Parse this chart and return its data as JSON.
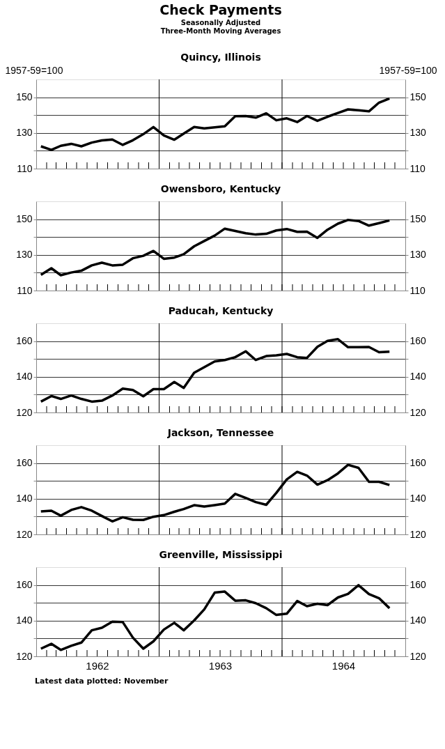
{
  "chart_data": [
    {
      "type": "other",
      "title": "Check Payments",
      "subtitle": [
        "Seasonally Adjusted",
        "Three-Month Moving Averages"
      ]
    },
    {
      "type": "line",
      "title": "Quincy, Illinois",
      "ylabel": "1957-59=100",
      "y2label": "1957-59=100",
      "x": [
        "1962-01-15",
        "1962-02-15",
        "1962-03-15",
        "1962-04-15",
        "1962-05-15",
        "1962-06-15",
        "1962-07-15",
        "1962-08-15",
        "1962-09-15",
        "1962-10-15",
        "1962-11-15",
        "1962-12-15",
        "1963-01-15",
        "1963-02-15",
        "1963-03-15",
        "1963-04-15",
        "1963-05-15",
        "1963-06-15",
        "1963-07-15",
        "1963-08-15",
        "1963-09-15",
        "1963-10-15",
        "1963-11-15",
        "1963-12-15",
        "1964-01-15",
        "1964-02-15",
        "1964-03-15",
        "1964-04-15",
        "1964-05-15",
        "1964-06-15",
        "1964-07-15",
        "1964-08-15",
        "1964-09-15",
        "1964-10-15",
        "1964-11-15"
      ],
      "series": [
        {
          "color": "#000000",
          "values": [
            122.5,
            120.5,
            122.8,
            123.9,
            122.5,
            124.6,
            125.8,
            126.3,
            123.3,
            125.9,
            129.3,
            133.3,
            128.6,
            126.2,
            129.6,
            133.3,
            132.6,
            133.1,
            133.7,
            139.4,
            139.5,
            138.6,
            141.0,
            137.1,
            138.2,
            136.1,
            139.5,
            136.8,
            139.1,
            141.2,
            143.2,
            142.7,
            142.1,
            147.0,
            149.3
          ]
        }
      ],
      "xlim": [
        "1962-01-01",
        "1965-01-01"
      ],
      "xticks": [
        {
          "value": "1962-02-01",
          "label": null
        },
        {
          "value": "1962-03-01",
          "label": null
        },
        {
          "value": "1962-04-01",
          "label": null
        },
        {
          "value": "1962-05-01",
          "label": null
        },
        {
          "value": "1962-06-01",
          "label": null
        },
        {
          "value": "1962-07-01",
          "label": null
        },
        {
          "value": "1962-08-01",
          "label": null
        },
        {
          "value": "1962-09-01",
          "label": null
        },
        {
          "value": "1962-10-01",
          "label": null
        },
        {
          "value": "1962-11-01",
          "label": null
        },
        {
          "value": "1962-12-01",
          "label": null
        },
        {
          "value": "1963-01-01",
          "label": null
        },
        {
          "value": "1963-02-01",
          "label": null
        },
        {
          "value": "1963-03-01",
          "label": null
        },
        {
          "value": "1963-04-01",
          "label": null
        },
        {
          "value": "1963-05-01",
          "label": null
        },
        {
          "value": "1963-06-01",
          "label": null
        },
        {
          "value": "1963-07-01",
          "label": null
        },
        {
          "value": "1963-08-01",
          "label": null
        },
        {
          "value": "1963-09-01",
          "label": null
        },
        {
          "value": "1963-10-01",
          "label": null
        },
        {
          "value": "1963-11-01",
          "label": null
        },
        {
          "value": "1963-12-01",
          "label": null
        },
        {
          "value": "1964-01-01",
          "label": null
        },
        {
          "value": "1964-02-01",
          "label": null
        },
        {
          "value": "1964-03-01",
          "label": null
        },
        {
          "value": "1964-04-01",
          "label": null
        },
        {
          "value": "1964-05-01",
          "label": null
        },
        {
          "value": "1964-06-01",
          "label": null
        },
        {
          "value": "1964-07-01",
          "label": null
        },
        {
          "value": "1964-08-01",
          "label": null
        },
        {
          "value": "1964-09-01",
          "label": null
        },
        {
          "value": "1964-10-01",
          "label": null
        },
        {
          "value": "1964-11-01",
          "label": null
        },
        {
          "value": "1964-12-01",
          "label": null
        }
      ],
      "ylim": [
        110,
        160
      ],
      "yticks": [
        110,
        {
          "value": 120,
          "label": null
        },
        130,
        {
          "value": 140,
          "label": null
        },
        150
      ],
      "y2lim": [
        110,
        160
      ],
      "y2ticks": [
        110,
        {
          "value": 120,
          "label": null
        },
        130,
        {
          "value": 140,
          "label": null
        },
        150
      ],
      "tick_labels": "y",
      "grid": "y",
      "ref_lines": [
        {
          "axis": "x",
          "value": "1963-01-01"
        },
        {
          "axis": "x",
          "value": "1964-01-01"
        }
      ]
    },
    {
      "type": "line",
      "title": "Owensboro, Kentucky",
      "x": [
        "1962-01-15",
        "1962-02-15",
        "1962-03-15",
        "1962-04-15",
        "1962-05-15",
        "1962-06-15",
        "1962-07-15",
        "1962-08-15",
        "1962-09-15",
        "1962-10-15",
        "1962-11-15",
        "1962-12-15",
        "1963-01-15",
        "1963-02-15",
        "1963-03-15",
        "1963-04-15",
        "1963-05-15",
        "1963-06-15",
        "1963-07-15",
        "1963-08-15",
        "1963-09-15",
        "1963-10-15",
        "1963-11-15",
        "1963-12-15",
        "1964-01-15",
        "1964-02-15",
        "1964-03-15",
        "1964-04-15",
        "1964-05-15",
        "1964-06-15",
        "1964-07-15",
        "1964-08-15",
        "1964-09-15",
        "1964-10-15",
        "1964-11-15"
      ],
      "series": [
        {
          "color": "#000000",
          "values": [
            118.8,
            122.5,
            118.6,
            120.1,
            121.1,
            124.1,
            125.6,
            124.1,
            124.5,
            128.1,
            129.5,
            132.2,
            127.8,
            128.5,
            130.4,
            134.8,
            137.8,
            140.8,
            144.7,
            143.4,
            142.1,
            141.4,
            141.8,
            143.7,
            144.5,
            142.9,
            143.0,
            139.5,
            144.1,
            147.5,
            149.6,
            149.0,
            146.4,
            147.8,
            149.3
          ]
        }
      ],
      "xlim": [
        "1962-01-01",
        "1965-01-01"
      ],
      "xticks": [
        {
          "value": "1962-02-01",
          "label": null
        },
        {
          "value": "1962-03-01",
          "label": null
        },
        {
          "value": "1962-04-01",
          "label": null
        },
        {
          "value": "1962-05-01",
          "label": null
        },
        {
          "value": "1962-06-01",
          "label": null
        },
        {
          "value": "1962-07-01",
          "label": null
        },
        {
          "value": "1962-08-01",
          "label": null
        },
        {
          "value": "1962-09-01",
          "label": null
        },
        {
          "value": "1962-10-01",
          "label": null
        },
        {
          "value": "1962-11-01",
          "label": null
        },
        {
          "value": "1962-12-01",
          "label": null
        },
        {
          "value": "1963-01-01",
          "label": null
        },
        {
          "value": "1963-02-01",
          "label": null
        },
        {
          "value": "1963-03-01",
          "label": null
        },
        {
          "value": "1963-04-01",
          "label": null
        },
        {
          "value": "1963-05-01",
          "label": null
        },
        {
          "value": "1963-06-01",
          "label": null
        },
        {
          "value": "1963-07-01",
          "label": null
        },
        {
          "value": "1963-08-01",
          "label": null
        },
        {
          "value": "1963-09-01",
          "label": null
        },
        {
          "value": "1963-10-01",
          "label": null
        },
        {
          "value": "1963-11-01",
          "label": null
        },
        {
          "value": "1963-12-01",
          "label": null
        },
        {
          "value": "1964-01-01",
          "label": null
        },
        {
          "value": "1964-02-01",
          "label": null
        },
        {
          "value": "1964-03-01",
          "label": null
        },
        {
          "value": "1964-04-01",
          "label": null
        },
        {
          "value": "1964-05-01",
          "label": null
        },
        {
          "value": "1964-06-01",
          "label": null
        },
        {
          "value": "1964-07-01",
          "label": null
        },
        {
          "value": "1964-08-01",
          "label": null
        },
        {
          "value": "1964-09-01",
          "label": null
        },
        {
          "value": "1964-10-01",
          "label": null
        },
        {
          "value": "1964-11-01",
          "label": null
        },
        {
          "value": "1964-12-01",
          "label": null
        }
      ],
      "ylim": [
        110,
        160
      ],
      "yticks": [
        110,
        {
          "value": 120,
          "label": null
        },
        130,
        {
          "value": 140,
          "label": null
        },
        150
      ],
      "y2lim": [
        110,
        160
      ],
      "y2ticks": [
        110,
        {
          "value": 120,
          "label": null
        },
        130,
        {
          "value": 140,
          "label": null
        },
        150
      ],
      "tick_labels": "y",
      "grid": "y",
      "ref_lines": [
        {
          "axis": "x",
          "value": "1963-01-01"
        },
        {
          "axis": "x",
          "value": "1964-01-01"
        }
      ]
    },
    {
      "type": "line",
      "title": "Paducah, Kentucky",
      "x": [
        "1962-01-15",
        "1962-02-15",
        "1962-03-15",
        "1962-04-15",
        "1962-05-15",
        "1962-06-15",
        "1962-07-15",
        "1962-08-15",
        "1962-09-15",
        "1962-10-15",
        "1962-11-15",
        "1962-12-15",
        "1963-01-15",
        "1963-02-15",
        "1963-03-15",
        "1963-04-15",
        "1963-05-15",
        "1963-06-15",
        "1963-07-15",
        "1963-08-15",
        "1963-09-15",
        "1963-10-15",
        "1963-11-15",
        "1963-12-15",
        "1964-01-15",
        "1964-02-15",
        "1964-03-15",
        "1964-04-15",
        "1964-05-15",
        "1964-06-15",
        "1964-07-15",
        "1964-08-15",
        "1964-09-15",
        "1964-10-15",
        "1964-11-15"
      ],
      "series": [
        {
          "color": "#000000",
          "values": [
            126.1,
            129.2,
            127.6,
            129.5,
            127.6,
            126.1,
            126.6,
            129.5,
            133.4,
            132.6,
            129.1,
            133.1,
            133.1,
            137.1,
            133.8,
            142.3,
            145.4,
            148.6,
            149.4,
            151.0,
            154.3,
            149.4,
            151.6,
            152.0,
            152.8,
            151.0,
            150.6,
            156.8,
            160.1,
            161.1,
            156.6,
            156.6,
            156.7,
            153.8,
            154.1
          ]
        }
      ],
      "xlim": [
        "1962-01-01",
        "1965-01-01"
      ],
      "xticks": [
        {
          "value": "1962-02-01",
          "label": null
        },
        {
          "value": "1962-03-01",
          "label": null
        },
        {
          "value": "1962-04-01",
          "label": null
        },
        {
          "value": "1962-05-01",
          "label": null
        },
        {
          "value": "1962-06-01",
          "label": null
        },
        {
          "value": "1962-07-01",
          "label": null
        },
        {
          "value": "1962-08-01",
          "label": null
        },
        {
          "value": "1962-09-01",
          "label": null
        },
        {
          "value": "1962-10-01",
          "label": null
        },
        {
          "value": "1962-11-01",
          "label": null
        },
        {
          "value": "1962-12-01",
          "label": null
        },
        {
          "value": "1963-01-01",
          "label": null
        },
        {
          "value": "1963-02-01",
          "label": null
        },
        {
          "value": "1963-03-01",
          "label": null
        },
        {
          "value": "1963-04-01",
          "label": null
        },
        {
          "value": "1963-05-01",
          "label": null
        },
        {
          "value": "1963-06-01",
          "label": null
        },
        {
          "value": "1963-07-01",
          "label": null
        },
        {
          "value": "1963-08-01",
          "label": null
        },
        {
          "value": "1963-09-01",
          "label": null
        },
        {
          "value": "1963-10-01",
          "label": null
        },
        {
          "value": "1963-11-01",
          "label": null
        },
        {
          "value": "1963-12-01",
          "label": null
        },
        {
          "value": "1964-01-01",
          "label": null
        },
        {
          "value": "1964-02-01",
          "label": null
        },
        {
          "value": "1964-03-01",
          "label": null
        },
        {
          "value": "1964-04-01",
          "label": null
        },
        {
          "value": "1964-05-01",
          "label": null
        },
        {
          "value": "1964-06-01",
          "label": null
        },
        {
          "value": "1964-07-01",
          "label": null
        },
        {
          "value": "1964-08-01",
          "label": null
        },
        {
          "value": "1964-09-01",
          "label": null
        },
        {
          "value": "1964-10-01",
          "label": null
        },
        {
          "value": "1964-11-01",
          "label": null
        },
        {
          "value": "1964-12-01",
          "label": null
        }
      ],
      "ylim": [
        120,
        170
      ],
      "yticks": [
        120,
        {
          "value": 130,
          "label": null
        },
        140,
        {
          "value": 150,
          "label": null
        },
        160
      ],
      "y2lim": [
        120,
        170
      ],
      "y2ticks": [
        120,
        {
          "value": 130,
          "label": null
        },
        140,
        {
          "value": 150,
          "label": null
        },
        160
      ],
      "tick_labels": "y",
      "grid": "y",
      "ref_lines": [
        {
          "axis": "x",
          "value": "1963-01-01"
        },
        {
          "axis": "x",
          "value": "1964-01-01"
        }
      ]
    },
    {
      "type": "line",
      "title": "Jackson, Tennessee",
      "x": [
        "1962-01-15",
        "1962-02-15",
        "1962-03-15",
        "1962-04-15",
        "1962-05-15",
        "1962-06-15",
        "1962-07-15",
        "1962-08-15",
        "1962-09-15",
        "1962-10-15",
        "1962-11-15",
        "1962-12-15",
        "1963-01-15",
        "1963-02-15",
        "1963-03-15",
        "1963-04-15",
        "1963-05-15",
        "1963-06-15",
        "1963-07-15",
        "1963-08-15",
        "1963-09-15",
        "1963-10-15",
        "1963-11-15",
        "1963-12-15",
        "1964-01-15",
        "1964-02-15",
        "1964-03-15",
        "1964-04-15",
        "1964-05-15",
        "1964-06-15",
        "1964-07-15",
        "1964-08-15",
        "1964-09-15",
        "1964-10-15",
        "1964-11-15"
      ],
      "series": [
        {
          "color": "#000000",
          "values": [
            132.9,
            133.3,
            130.5,
            133.7,
            135.3,
            133.3,
            130.3,
            127.3,
            129.6,
            128.2,
            128.1,
            129.9,
            130.8,
            132.7,
            134.2,
            136.4,
            135.6,
            136.4,
            137.3,
            142.7,
            140.5,
            138.1,
            136.6,
            143.3,
            150.8,
            155.1,
            153.0,
            147.9,
            150.4,
            154.2,
            159.0,
            157.3,
            149.5,
            149.5,
            147.7
          ]
        }
      ],
      "xlim": [
        "1962-01-01",
        "1965-01-01"
      ],
      "xticks": [
        {
          "value": "1962-02-01",
          "label": null
        },
        {
          "value": "1962-03-01",
          "label": null
        },
        {
          "value": "1962-04-01",
          "label": null
        },
        {
          "value": "1962-05-01",
          "label": null
        },
        {
          "value": "1962-06-01",
          "label": null
        },
        {
          "value": "1962-07-01",
          "label": null
        },
        {
          "value": "1962-08-01",
          "label": null
        },
        {
          "value": "1962-09-01",
          "label": null
        },
        {
          "value": "1962-10-01",
          "label": null
        },
        {
          "value": "1962-11-01",
          "label": null
        },
        {
          "value": "1962-12-01",
          "label": null
        },
        {
          "value": "1963-01-01",
          "label": null
        },
        {
          "value": "1963-02-01",
          "label": null
        },
        {
          "value": "1963-03-01",
          "label": null
        },
        {
          "value": "1963-04-01",
          "label": null
        },
        {
          "value": "1963-05-01",
          "label": null
        },
        {
          "value": "1963-06-01",
          "label": null
        },
        {
          "value": "1963-07-01",
          "label": null
        },
        {
          "value": "1963-08-01",
          "label": null
        },
        {
          "value": "1963-09-01",
          "label": null
        },
        {
          "value": "1963-10-01",
          "label": null
        },
        {
          "value": "1963-11-01",
          "label": null
        },
        {
          "value": "1963-12-01",
          "label": null
        },
        {
          "value": "1964-01-01",
          "label": null
        },
        {
          "value": "1964-02-01",
          "label": null
        },
        {
          "value": "1964-03-01",
          "label": null
        },
        {
          "value": "1964-04-01",
          "label": null
        },
        {
          "value": "1964-05-01",
          "label": null
        },
        {
          "value": "1964-06-01",
          "label": null
        },
        {
          "value": "1964-07-01",
          "label": null
        },
        {
          "value": "1964-08-01",
          "label": null
        },
        {
          "value": "1964-09-01",
          "label": null
        },
        {
          "value": "1964-10-01",
          "label": null
        },
        {
          "value": "1964-11-01",
          "label": null
        },
        {
          "value": "1964-12-01",
          "label": null
        }
      ],
      "ylim": [
        120,
        170
      ],
      "yticks": [
        120,
        {
          "value": 130,
          "label": null
        },
        140,
        {
          "value": 150,
          "label": null
        },
        160
      ],
      "y2lim": [
        120,
        170
      ],
      "y2ticks": [
        120,
        {
          "value": 130,
          "label": null
        },
        140,
        {
          "value": 150,
          "label": null
        },
        160
      ],
      "tick_labels": "y",
      "grid": "y",
      "ref_lines": [
        {
          "axis": "x",
          "value": "1963-01-01"
        },
        {
          "axis": "x",
          "value": "1964-01-01"
        }
      ]
    },
    {
      "type": "line",
      "title": "Greenville, Mississippi",
      "x": [
        "1962-01-15",
        "1962-02-15",
        "1962-03-15",
        "1962-04-15",
        "1962-05-15",
        "1962-06-15",
        "1962-07-15",
        "1962-08-15",
        "1962-09-15",
        "1962-10-15",
        "1962-11-15",
        "1962-12-15",
        "1963-01-15",
        "1963-02-15",
        "1963-03-15",
        "1963-04-15",
        "1963-05-15",
        "1963-06-15",
        "1963-07-15",
        "1963-08-15",
        "1963-09-15",
        "1963-10-15",
        "1963-11-15",
        "1963-12-15",
        "1964-01-15",
        "1964-02-15",
        "1964-03-15",
        "1964-04-15",
        "1964-05-15",
        "1964-06-15",
        "1964-07-15",
        "1964-08-15",
        "1964-09-15",
        "1964-10-15",
        "1964-11-15"
      ],
      "series": [
        {
          "color": "#000000",
          "values": [
            124.3,
            127.0,
            123.6,
            125.9,
            127.7,
            134.6,
            136.0,
            139.4,
            139.2,
            130.5,
            124.3,
            128.4,
            135.0,
            138.8,
            134.6,
            140.1,
            146.3,
            155.7,
            156.3,
            151.2,
            151.4,
            149.8,
            147.0,
            143.2,
            143.9,
            151.0,
            148.1,
            149.5,
            148.7,
            153.0,
            155.0,
            159.9,
            154.9,
            152.6,
            147.0
          ]
        }
      ],
      "xlim": [
        "1962-01-01",
        "1965-01-01"
      ],
      "xticks": [
        {
          "value": "1962-02-01",
          "label": null
        },
        {
          "value": "1962-03-01",
          "label": null
        },
        {
          "value": "1962-04-01",
          "label": null
        },
        {
          "value": "1962-05-01",
          "label": null
        },
        {
          "value": "1962-06-01",
          "label": null
        },
        {
          "value": "1962-07-01",
          "label": "1962"
        },
        {
          "value": "1962-08-01",
          "label": null
        },
        {
          "value": "1962-09-01",
          "label": null
        },
        {
          "value": "1962-10-01",
          "label": null
        },
        {
          "value": "1962-11-01",
          "label": null
        },
        {
          "value": "1962-12-01",
          "label": null
        },
        {
          "value": "1963-01-01",
          "label": null
        },
        {
          "value": "1963-02-01",
          "label": null
        },
        {
          "value": "1963-03-01",
          "label": null
        },
        {
          "value": "1963-04-01",
          "label": null
        },
        {
          "value": "1963-05-01",
          "label": null
        },
        {
          "value": "1963-06-01",
          "label": null
        },
        {
          "value": "1963-07-01",
          "label": "1963"
        },
        {
          "value": "1963-08-01",
          "label": null
        },
        {
          "value": "1963-09-01",
          "label": null
        },
        {
          "value": "1963-10-01",
          "label": null
        },
        {
          "value": "1963-11-01",
          "label": null
        },
        {
          "value": "1963-12-01",
          "label": null
        },
        {
          "value": "1964-01-01",
          "label": null
        },
        {
          "value": "1964-02-01",
          "label": null
        },
        {
          "value": "1964-03-01",
          "label": null
        },
        {
          "value": "1964-04-01",
          "label": null
        },
        {
          "value": "1964-05-01",
          "label": null
        },
        {
          "value": "1964-06-01",
          "label": null
        },
        {
          "value": "1964-07-01",
          "label": "1964"
        },
        {
          "value": "1964-08-01",
          "label": null
        },
        {
          "value": "1964-09-01",
          "label": null
        },
        {
          "value": "1964-10-01",
          "label": null
        },
        {
          "value": "1964-11-01",
          "label": null
        },
        {
          "value": "1964-12-01",
          "label": null
        }
      ],
      "ylim": [
        120,
        170
      ],
      "yticks": [
        120,
        {
          "value": 130,
          "label": null
        },
        140,
        {
          "value": 150,
          "label": null
        },
        160
      ],
      "y2lim": [
        120,
        170
      ],
      "y2ticks": [
        120,
        {
          "value": 130,
          "label": null
        },
        140,
        {
          "value": 150,
          "label": null
        },
        160
      ],
      "grid": "y",
      "ref_lines": [
        {
          "axis": "x",
          "value": "1963-01-01"
        },
        {
          "axis": "x",
          "value": "1964-01-01"
        }
      ],
      "annotations": [
        "Latest data plotted: November"
      ]
    }
  ]
}
